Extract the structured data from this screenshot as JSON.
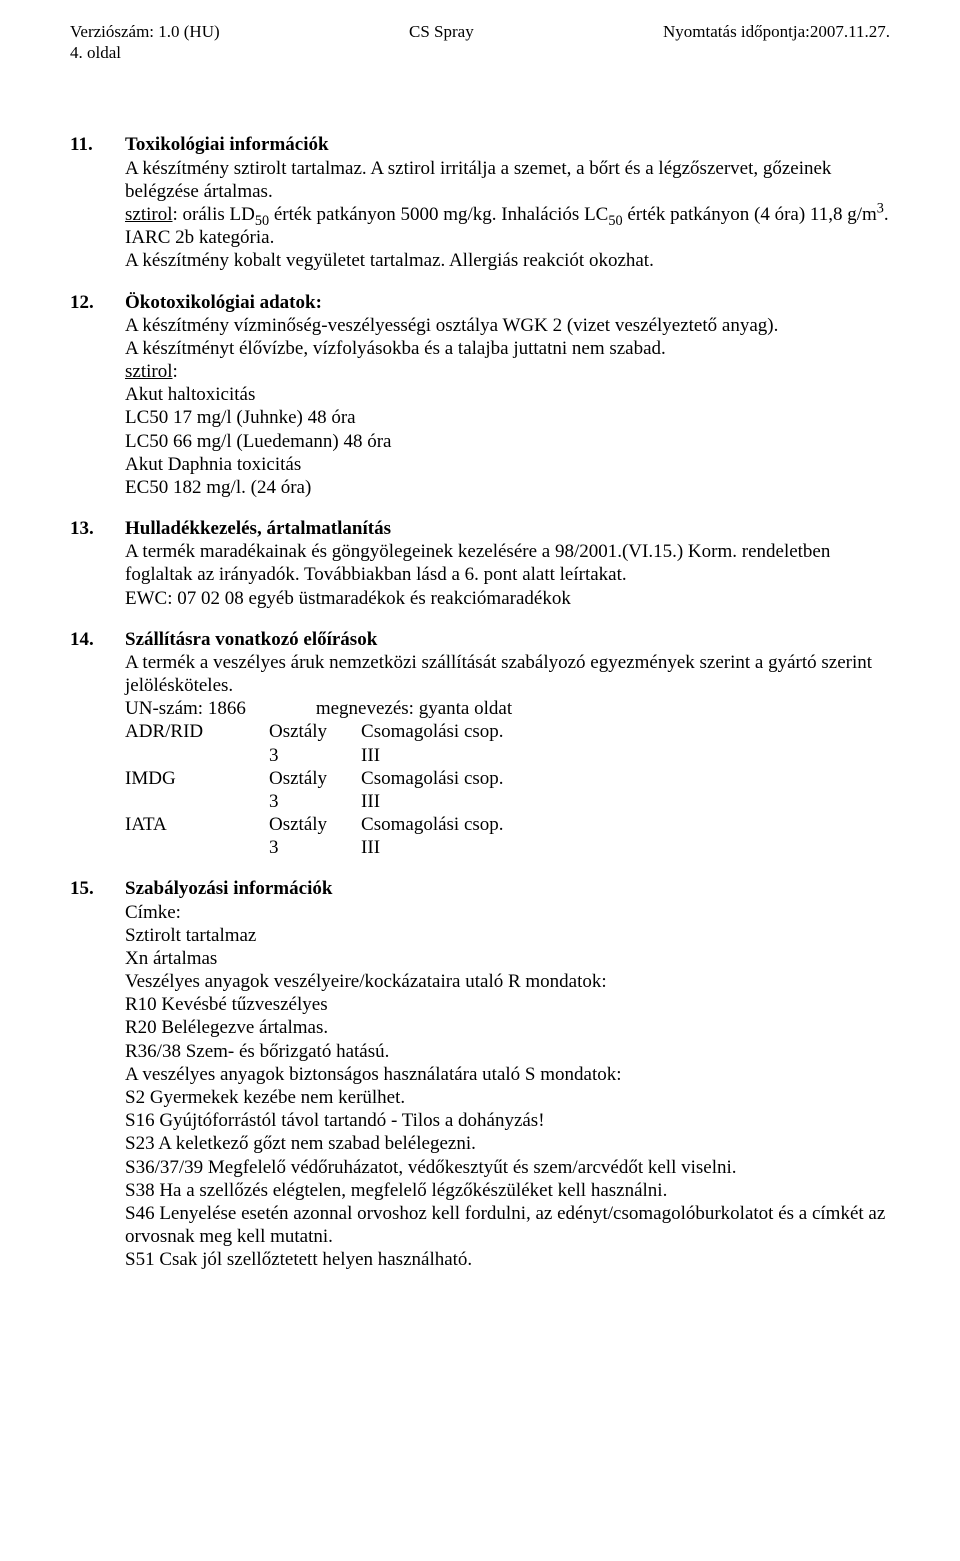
{
  "header": {
    "left": "Verziószám: 1.0 (HU)",
    "center": "CS Spray",
    "right": "Nyomtatás időpontja:2007.11.27.",
    "sub": "4. oldal"
  },
  "sections": [
    {
      "num": "11.",
      "title": "Toxikológiai információk",
      "lines": [
        {
          "t": "A készítmény sztirolt tartalmaz. A sztirol irritálja a szemet, a bőrt és a légzőszervet, gőzeinek belégzése ártalmas."
        },
        {
          "t": "sztirol: orális LD50 érték patkányon 5000 mg/kg. Inhalációs LC50 érték patkányon (4 óra) 11,8 g/m3. IARC 2b kategória.",
          "sub50a": true,
          "sub50b": true,
          "sup3": true,
          "uword": "sztirol"
        },
        {
          "t": "A készítmény kobalt vegyületet tartalmaz. Allergiás reakciót okozhat."
        }
      ]
    },
    {
      "num": "12.",
      "title": "Ökotoxikológiai adatok:",
      "lines": [
        {
          "t": "A készítmény vízminőség-veszélyességi osztálya WGK 2 (vizet veszélyeztető anyag)."
        },
        {
          "t": "A készítményt élővízbe, vízfolyásokba és a talajba juttatni nem szabad."
        },
        {
          "t": "sztirol:",
          "uword": "sztirol"
        },
        {
          "t": "Akut haltoxicitás"
        },
        {
          "t": "LC50 17 mg/l (Juhnke) 48 óra"
        },
        {
          "t": "LC50 66 mg/l (Luedemann) 48 óra"
        },
        {
          "t": "Akut Daphnia toxicitás"
        },
        {
          "t": "EC50 182 mg/l. (24 óra)"
        }
      ]
    },
    {
      "num": "13.",
      "title": "Hulladékkezelés, ártalmatlanítás",
      "lines": [
        {
          "t": "A termék maradékainak és göngyölegeinek kezelésére a 98/2001.(VI.15.) Korm. rendeletben foglaltak az irányadók. Továbbiakban lásd a 6. pont alatt leírtakat."
        },
        {
          "t": "EWC: 07 02 08 egyéb üstmaradékok és reakciómaradékok"
        }
      ]
    },
    {
      "num": "14.",
      "title": "Szállításra vonatkozó előírások",
      "lines": [
        {
          "t": "A termék a veszélyes áruk nemzetközi szállítását szabályozó egyezmények szerint a gyártó szerint jelölésköteles."
        }
      ],
      "un_line": {
        "un_label": "UN-szám: 1866",
        "name_label": "megnevezés: gyanta oldat"
      },
      "transport": [
        {
          "mode": "ADR/RID",
          "col1": "Osztály",
          "col2": "Csomagolási csop.",
          "v1": "3",
          "v2": "III"
        },
        {
          "mode": "IMDG",
          "col1": "Osztály",
          "col2": "Csomagolási csop.",
          "v1": "3",
          "v2": "III"
        },
        {
          "mode": "IATA",
          "col1": "Osztály",
          "col2": "Csomagolási csop.",
          "v1": "3",
          "v2": "III"
        }
      ]
    },
    {
      "num": "15.",
      "title": "Szabályozási információk",
      "lines": [
        {
          "t": "Címke:"
        },
        {
          "t": "Sztirolt tartalmaz"
        },
        {
          "t": "Xn ártalmas"
        },
        {
          "t": "Veszélyes anyagok veszélyeire/kockázataira utaló R mondatok:"
        },
        {
          "t": "R10 Kevésbé tűzveszélyes"
        },
        {
          "t": "R20 Belélegezve ártalmas."
        },
        {
          "t": "R36/38 Szem- és bőrizgató hatású."
        },
        {
          "t": "A veszélyes anyagok biztonságos használatára utaló S mondatok:"
        },
        {
          "t": "S2 Gyermekek kezébe nem kerülhet."
        },
        {
          "t": "S16 Gyújtóforrástól távol tartandó - Tilos a dohányzás!"
        },
        {
          "t": "S23 A keletkező gőzt nem szabad belélegezni."
        },
        {
          "t": "S36/37/39 Megfelelő védőruházatot, védőkesztyűt és szem/arcvédőt kell viselni."
        },
        {
          "t": "S38 Ha a szellőzés elégtelen, megfelelő légzőkészüléket kell használni."
        },
        {
          "t": "S46 Lenyelése esetén azonnal orvoshoz kell fordulni, az edényt/csomagolóburkolatot és a címkét az orvosnak meg kell mutatni."
        },
        {
          "t": "S51 Csak jól szellőztetett helyen használható."
        }
      ]
    }
  ]
}
